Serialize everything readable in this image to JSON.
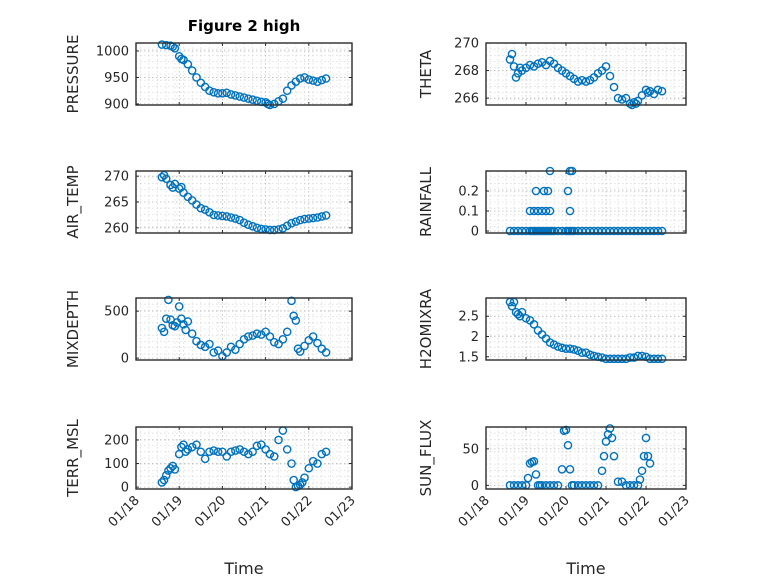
{
  "chart_data": [
    {
      "type": "scatter",
      "title": "Figure 2 high",
      "ylabel": "PRESSURE",
      "ylim": [
        898,
        1015
      ],
      "yticks": [
        900,
        950,
        1000
      ],
      "ytick_labels": [
        "900",
        "950",
        "1000"
      ],
      "xlim": [
        0,
        5
      ],
      "xticks": [
        0,
        1,
        2,
        3,
        4,
        5
      ],
      "xtick_labels": [],
      "xlabel": "",
      "x": [
        0.6,
        0.7,
        0.8,
        0.85,
        0.9,
        1.0,
        1.05,
        1.1,
        1.2,
        1.3,
        1.4,
        1.5,
        1.6,
        1.7,
        1.8,
        1.9,
        2.0,
        2.1,
        2.2,
        2.3,
        2.4,
        2.5,
        2.6,
        2.7,
        2.8,
        2.9,
        3.0,
        3.05,
        3.1,
        3.2,
        3.3,
        3.4,
        3.5,
        3.6,
        3.7,
        3.8,
        3.9,
        4.0,
        4.1,
        4.2,
        4.3,
        4.4
      ],
      "y": [
        1012,
        1011,
        1010,
        1008,
        1005,
        990,
        985,
        983,
        975,
        963,
        950,
        940,
        932,
        925,
        922,
        920,
        920,
        921,
        918,
        916,
        914,
        912,
        910,
        908,
        906,
        904,
        903,
        900,
        898,
        900,
        905,
        910,
        925,
        935,
        942,
        948,
        950,
        946,
        944,
        942,
        945,
        948
      ]
    },
    {
      "type": "scatter",
      "title": "",
      "ylabel": "THETA",
      "ylim": [
        265.5,
        270
      ],
      "yticks": [
        266,
        268,
        270
      ],
      "ytick_labels": [
        "266",
        "268",
        "270"
      ],
      "xlim": [
        0,
        5
      ],
      "xticks": [
        0,
        1,
        2,
        3,
        4,
        5
      ],
      "xtick_labels": [],
      "xlabel": "",
      "x": [
        0.6,
        0.65,
        0.7,
        0.75,
        0.8,
        0.85,
        0.9,
        1.0,
        1.1,
        1.2,
        1.3,
        1.4,
        1.5,
        1.6,
        1.7,
        1.8,
        1.9,
        2.0,
        2.1,
        2.2,
        2.3,
        2.4,
        2.5,
        2.6,
        2.7,
        2.8,
        2.9,
        3.0,
        3.1,
        3.2,
        3.3,
        3.4,
        3.5,
        3.6,
        3.65,
        3.7,
        3.75,
        3.8,
        3.9,
        4.0,
        4.05,
        4.1,
        4.2,
        4.3,
        4.4
      ],
      "y": [
        268.8,
        269.2,
        268.3,
        267.5,
        267.8,
        268.2,
        268.0,
        268.2,
        268.4,
        268.3,
        268.5,
        268.6,
        268.4,
        268.7,
        268.5,
        268.2,
        268.0,
        267.8,
        267.6,
        267.4,
        267.2,
        267.3,
        267.2,
        267.3,
        267.5,
        267.8,
        268.0,
        268.3,
        267.6,
        266.8,
        266.0,
        265.9,
        266.0,
        265.6,
        265.5,
        265.7,
        265.6,
        265.8,
        266.2,
        266.6,
        266.4,
        266.5,
        266.3,
        266.6,
        266.5
      ]
    },
    {
      "type": "scatter",
      "title": "",
      "ylabel": "AIR_TEMP",
      "ylim": [
        259,
        271
      ],
      "yticks": [
        260,
        265,
        270
      ],
      "ytick_labels": [
        "260",
        "265",
        "270"
      ],
      "xlim": [
        0,
        5
      ],
      "xticks": [
        0,
        1,
        2,
        3,
        4,
        5
      ],
      "xtick_labels": [],
      "xlabel": "",
      "x": [
        0.6,
        0.65,
        0.7,
        0.8,
        0.85,
        0.9,
        1.0,
        1.05,
        1.1,
        1.2,
        1.3,
        1.4,
        1.5,
        1.6,
        1.7,
        1.8,
        1.9,
        2.0,
        2.1,
        2.2,
        2.3,
        2.4,
        2.5,
        2.6,
        2.7,
        2.8,
        2.9,
        3.0,
        3.1,
        3.2,
        3.3,
        3.4,
        3.5,
        3.6,
        3.7,
        3.8,
        3.9,
        4.0,
        4.1,
        4.2,
        4.3,
        4.4
      ],
      "y": [
        269.8,
        270.2,
        269.5,
        268.3,
        267.8,
        268.5,
        267.6,
        267.9,
        266.8,
        266.0,
        265.3,
        264.5,
        263.8,
        263.5,
        263.0,
        262.5,
        262.4,
        262.3,
        262.2,
        262.0,
        261.8,
        261.5,
        261.0,
        260.6,
        260.3,
        260.0,
        259.8,
        259.7,
        259.6,
        259.6,
        259.7,
        259.9,
        260.4,
        260.9,
        261.2,
        261.5,
        261.7,
        261.8,
        261.9,
        262.0,
        262.2,
        262.4
      ]
    },
    {
      "type": "scatter",
      "title": "",
      "ylabel": "RAINFALL",
      "ylim": [
        -0.01,
        0.3
      ],
      "yticks": [
        0,
        0.1,
        0.2
      ],
      "ytick_labels": [
        "0",
        "0.1",
        "0.2"
      ],
      "xlim": [
        0,
        5
      ],
      "xticks": [
        0,
        1,
        2,
        3,
        4,
        5
      ],
      "xtick_labels": [],
      "xlabel": "",
      "x": [
        0.6,
        0.7,
        0.8,
        0.9,
        1.0,
        1.1,
        1.15,
        1.2,
        1.25,
        1.3,
        1.35,
        1.4,
        1.45,
        1.5,
        1.55,
        1.6,
        1.65,
        1.7,
        1.8,
        1.9,
        2.0,
        2.05,
        2.1,
        2.15,
        2.2,
        2.3,
        2.4,
        2.5,
        2.6,
        2.7,
        2.8,
        2.9,
        3.0,
        3.1,
        3.2,
        3.3,
        3.4,
        3.5,
        3.6,
        3.7,
        3.8,
        3.9,
        4.0,
        4.1,
        4.2,
        4.3,
        4.4,
        1.1,
        1.2,
        1.3,
        1.4,
        1.5,
        1.6,
        2.1,
        1.25,
        1.45,
        1.55,
        2.05,
        1.6,
        2.1,
        2.15
      ],
      "y": [
        0,
        0,
        0,
        0,
        0,
        0,
        0,
        0,
        0,
        0,
        0,
        0,
        0,
        0,
        0,
        0,
        0,
        0,
        0,
        0,
        0,
        0,
        0,
        0,
        0,
        0,
        0,
        0,
        0,
        0,
        0,
        0,
        0,
        0,
        0,
        0,
        0,
        0,
        0,
        0,
        0,
        0,
        0,
        0,
        0,
        0,
        0,
        0.1,
        0.1,
        0.1,
        0.1,
        0.1,
        0.1,
        0.1,
        0.2,
        0.2,
        0.2,
        0.2,
        0.3,
        0.3,
        0.3
      ]
    },
    {
      "type": "scatter",
      "title": "",
      "ylabel": "MIXDEPTH",
      "ylim": [
        -20,
        640
      ],
      "yticks": [
        0,
        500
      ],
      "ytick_labels": [
        "0",
        "500"
      ],
      "xlim": [
        0,
        5
      ],
      "xticks": [
        0,
        1,
        2,
        3,
        4,
        5
      ],
      "xtick_labels": [],
      "xlabel": "",
      "x": [
        0.6,
        0.65,
        0.7,
        0.75,
        0.8,
        0.85,
        0.9,
        0.95,
        1.0,
        1.05,
        1.1,
        1.15,
        1.2,
        1.3,
        1.4,
        1.5,
        1.6,
        1.7,
        1.8,
        1.9,
        2.0,
        2.1,
        2.2,
        2.3,
        2.4,
        2.5,
        2.6,
        2.7,
        2.8,
        2.9,
        3.0,
        3.1,
        3.2,
        3.3,
        3.4,
        3.5,
        3.6,
        3.65,
        3.7,
        3.75,
        3.8,
        3.9,
        4.0,
        4.1,
        4.2,
        4.3,
        4.4
      ],
      "y": [
        320,
        280,
        420,
        620,
        410,
        350,
        340,
        380,
        550,
        420,
        360,
        300,
        390,
        260,
        180,
        140,
        120,
        150,
        60,
        80,
        20,
        60,
        120,
        90,
        150,
        200,
        230,
        240,
        260,
        250,
        280,
        230,
        170,
        150,
        200,
        280,
        610,
        450,
        400,
        100,
        70,
        130,
        190,
        230,
        160,
        100,
        60
      ]
    },
    {
      "type": "scatter",
      "title": "",
      "ylabel": "H2OMIXRA",
      "ylim": [
        1.42,
        2.95
      ],
      "yticks": [
        1.5,
        2,
        2.5
      ],
      "ytick_labels": [
        "1.5",
        "2",
        "2.5"
      ],
      "xlim": [
        0,
        5
      ],
      "xticks": [
        0,
        1,
        2,
        3,
        4,
        5
      ],
      "xtick_labels": [],
      "xlabel": "",
      "x": [
        0.6,
        0.65,
        0.7,
        0.75,
        0.8,
        0.85,
        0.9,
        1.0,
        1.1,
        1.2,
        1.3,
        1.4,
        1.5,
        1.6,
        1.7,
        1.8,
        1.9,
        2.0,
        2.1,
        2.2,
        2.3,
        2.4,
        2.5,
        2.6,
        2.7,
        2.8,
        2.9,
        3.0,
        3.1,
        3.2,
        3.3,
        3.4,
        3.5,
        3.6,
        3.7,
        3.8,
        3.9,
        4.0,
        4.1,
        4.2,
        4.3,
        4.4
      ],
      "y": [
        2.85,
        2.75,
        2.85,
        2.6,
        2.55,
        2.5,
        2.6,
        2.45,
        2.4,
        2.3,
        2.15,
        2.05,
        1.95,
        1.85,
        1.8,
        1.75,
        1.72,
        1.7,
        1.7,
        1.68,
        1.65,
        1.6,
        1.6,
        1.55,
        1.52,
        1.5,
        1.48,
        1.45,
        1.45,
        1.45,
        1.45,
        1.45,
        1.45,
        1.48,
        1.48,
        1.52,
        1.52,
        1.5,
        1.45,
        1.45,
        1.45,
        1.45
      ]
    },
    {
      "type": "scatter",
      "title": "",
      "ylabel": "TERR_MSL",
      "ylim": [
        -8,
        255
      ],
      "yticks": [
        0,
        100,
        200
      ],
      "ytick_labels": [
        "0",
        "100",
        "200"
      ],
      "xlim": [
        0,
        5
      ],
      "xticks": [
        0,
        1,
        2,
        3,
        4,
        5
      ],
      "xtick_labels": [
        "01/18",
        "01/19",
        "01/20",
        "01/21",
        "01/22",
        "01/23"
      ],
      "xlabel": "Time",
      "x": [
        0.6,
        0.65,
        0.7,
        0.75,
        0.8,
        0.85,
        0.9,
        1.0,
        1.05,
        1.1,
        1.15,
        1.2,
        1.3,
        1.4,
        1.5,
        1.6,
        1.7,
        1.8,
        1.9,
        2.0,
        2.1,
        2.2,
        2.3,
        2.4,
        2.5,
        2.6,
        2.7,
        2.8,
        2.9,
        3.0,
        3.1,
        3.2,
        3.3,
        3.4,
        3.5,
        3.6,
        3.65,
        3.7,
        3.75,
        3.8,
        3.85,
        3.9,
        4.0,
        4.1,
        4.2,
        4.3,
        4.4
      ],
      "y": [
        20,
        30,
        50,
        70,
        80,
        90,
        75,
        140,
        170,
        180,
        150,
        160,
        170,
        180,
        150,
        120,
        150,
        155,
        150,
        150,
        130,
        150,
        155,
        160,
        150,
        140,
        150,
        175,
        180,
        160,
        140,
        130,
        200,
        240,
        160,
        100,
        30,
        0,
        5,
        10,
        20,
        40,
        80,
        110,
        100,
        140,
        150
      ]
    },
    {
      "type": "scatter",
      "title": "",
      "ylabel": "SUN_FLUX",
      "ylim": [
        -5,
        80
      ],
      "yticks": [
        0,
        50
      ],
      "ytick_labels": [
        "0",
        "50"
      ],
      "xlim": [
        0,
        5
      ],
      "xticks": [
        0,
        1,
        2,
        3,
        4,
        5
      ],
      "xtick_labels": [
        "01/18",
        "01/19",
        "01/20",
        "01/21",
        "01/22",
        "01/23"
      ],
      "xlabel": "Time",
      "x": [
        0.6,
        0.7,
        0.8,
        0.9,
        1.0,
        1.05,
        1.1,
        1.15,
        1.2,
        1.25,
        1.3,
        1.35,
        1.4,
        1.5,
        1.6,
        1.7,
        1.8,
        1.9,
        1.95,
        2.0,
        2.05,
        2.1,
        2.15,
        2.2,
        2.3,
        2.4,
        2.5,
        2.6,
        2.7,
        2.8,
        2.9,
        2.95,
        3.0,
        3.05,
        3.1,
        3.15,
        3.2,
        3.3,
        3.4,
        3.5,
        3.6,
        3.7,
        3.8,
        3.85,
        3.9,
        3.95,
        4.0,
        4.05,
        4.1
      ],
      "y": [
        0,
        0,
        0,
        0,
        0,
        10,
        30,
        32,
        33,
        15,
        0,
        0,
        0,
        0,
        0,
        0,
        0,
        22,
        75,
        76,
        55,
        22,
        0,
        0,
        0,
        0,
        0,
        0,
        0,
        0,
        20,
        40,
        60,
        70,
        78,
        65,
        40,
        5,
        5,
        0,
        0,
        0,
        0,
        8,
        20,
        40,
        65,
        40,
        30
      ]
    }
  ]
}
